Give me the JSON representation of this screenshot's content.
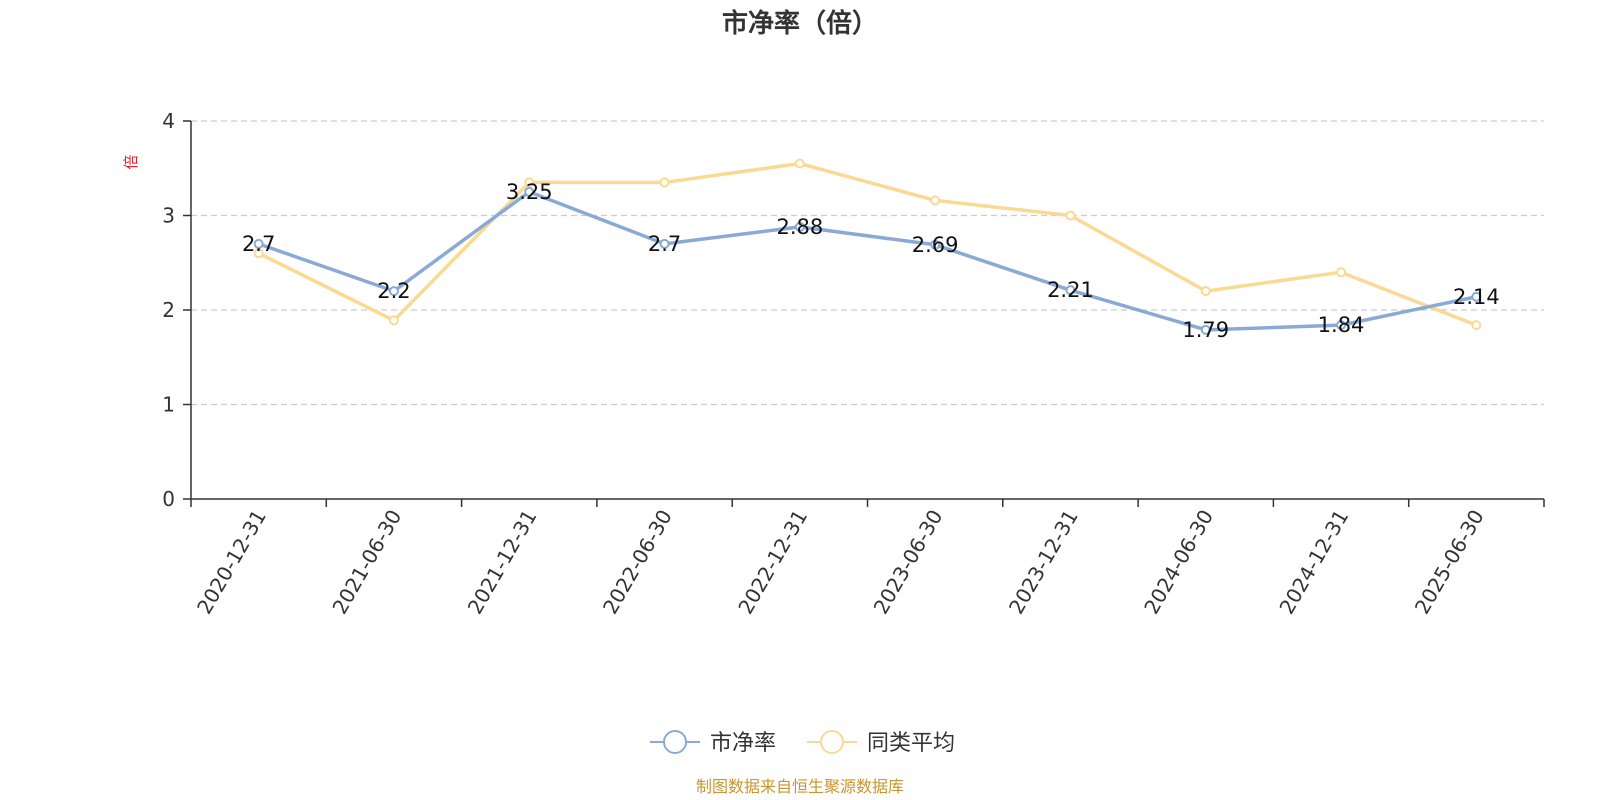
{
  "chart_data": {
    "type": "line",
    "title": "市净率（倍）",
    "ylabel": "倍",
    "xlabel": "",
    "categories": [
      "2020-12-31",
      "2021-06-30",
      "2021-12-31",
      "2022-06-30",
      "2022-12-31",
      "2023-06-30",
      "2023-12-31",
      "2024-06-30",
      "2024-12-31",
      "2025-06-30"
    ],
    "ylim": [
      0,
      4
    ],
    "yticks": [
      0,
      1,
      2,
      3,
      4
    ],
    "grid": true,
    "legend_position": "bottom",
    "series": [
      {
        "name": "市净率",
        "color": "#8aaad6",
        "show_labels": true,
        "values": [
          2.7,
          2.2,
          3.25,
          2.7,
          2.88,
          2.69,
          2.21,
          1.79,
          1.84,
          2.14
        ]
      },
      {
        "name": "同类平均",
        "color": "#fad993",
        "show_labels": false,
        "values": [
          2.6,
          1.89,
          3.35,
          3.35,
          3.55,
          3.16,
          3.0,
          2.2,
          2.4,
          1.84
        ]
      }
    ]
  },
  "footer": {
    "source": "制图数据来自恒生聚源数据库"
  },
  "colors": {
    "source_text": "#c9962e",
    "axis_label": "#e8202a",
    "grid": "#cccccc"
  }
}
